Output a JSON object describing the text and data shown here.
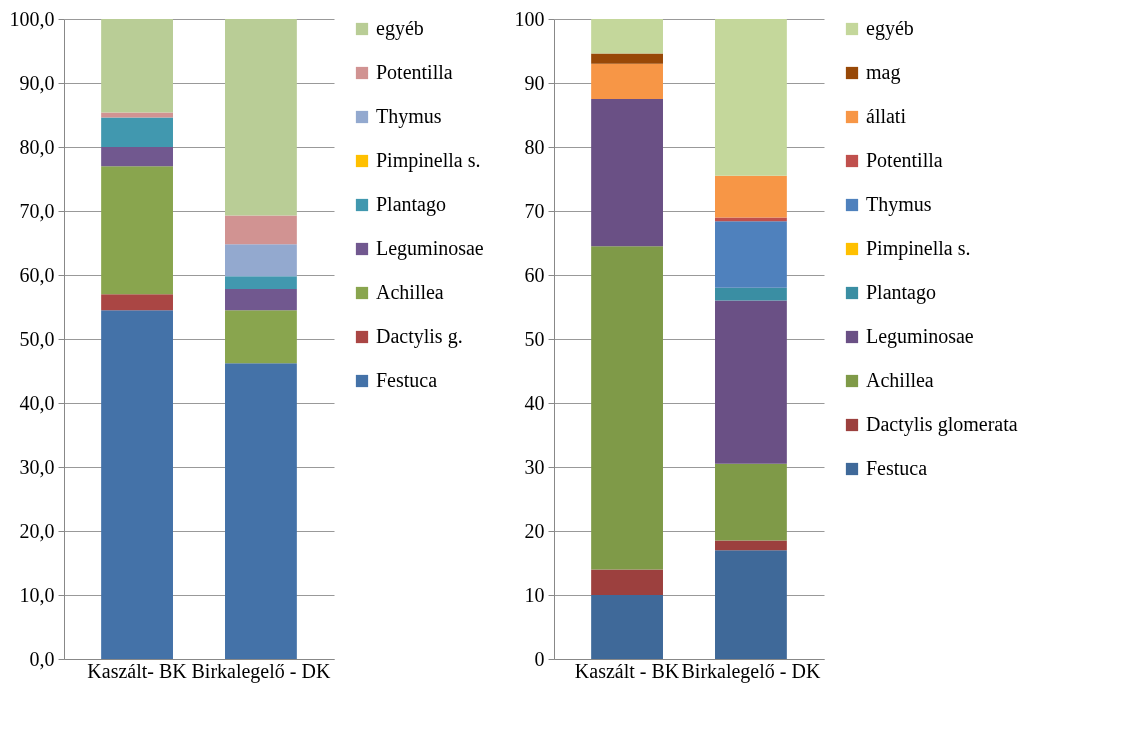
{
  "chart_data": [
    {
      "type": "bar",
      "stacked": true,
      "categories": [
        "Kaszált- BK",
        "Birkalegelő - DK"
      ],
      "ylim": [
        0,
        100
      ],
      "yticks": [
        {
          "value": 0,
          "label": "0,0"
        },
        {
          "value": 10,
          "label": "10,0"
        },
        {
          "value": 20,
          "label": "20,0"
        },
        {
          "value": 30,
          "label": "30,0"
        },
        {
          "value": 40,
          "label": "40,0"
        },
        {
          "value": 50,
          "label": "50,0"
        },
        {
          "value": 60,
          "label": "60,0"
        },
        {
          "value": 70,
          "label": "70,0"
        },
        {
          "value": 80,
          "label": "80,0"
        },
        {
          "value": 90,
          "label": "90,0"
        },
        {
          "value": 100,
          "label": "100,0"
        }
      ],
      "grid": "y",
      "legend": "right",
      "series": [
        {
          "name": "Festuca",
          "color": "#4472a8",
          "values": [
            54.5,
            46.2
          ]
        },
        {
          "name": "Dactylis g.",
          "color": "#aa4644",
          "values": [
            2.5,
            0
          ]
        },
        {
          "name": "Achillea",
          "color": "#89a54e",
          "values": [
            20.0,
            8.3
          ]
        },
        {
          "name": "Leguminosae",
          "color": "#71588f",
          "values": [
            3.0,
            3.3
          ]
        },
        {
          "name": "Plantago",
          "color": "#4198af",
          "values": [
            4.6,
            2.0
          ]
        },
        {
          "name": "Pimpinella s.",
          "color": "#ffc000",
          "values": [
            0,
            0
          ]
        },
        {
          "name": "Thymus",
          "color": "#93a9cf",
          "values": [
            0,
            5.0
          ]
        },
        {
          "name": "Potentilla",
          "color": "#d19392",
          "values": [
            0.8,
            4.5
          ]
        },
        {
          "name": "egyéb",
          "color": "#b9cd96",
          "values": [
            14.6,
            30.7
          ]
        }
      ]
    },
    {
      "type": "bar",
      "stacked": true,
      "categories": [
        "Kaszált - BK",
        "Birkalegelő - DK"
      ],
      "ylim": [
        0,
        100
      ],
      "yticks": [
        0,
        10,
        20,
        30,
        40,
        50,
        60,
        70,
        80,
        90,
        100
      ],
      "grid": "y",
      "legend": "right",
      "series": [
        {
          "name": "Festuca",
          "color": "#3f6999",
          "values": [
            10,
            17
          ]
        },
        {
          "name": "Dactylis glomerata",
          "color": "#9c403e",
          "values": [
            4,
            1.5
          ]
        },
        {
          "name": "Achillea",
          "color": "#7f9a48",
          "values": [
            50.5,
            12
          ]
        },
        {
          "name": "Leguminosae",
          "color": "#6a5085",
          "values": [
            23,
            25.5
          ]
        },
        {
          "name": "Plantago",
          "color": "#3a8ea3",
          "values": [
            0,
            2
          ]
        },
        {
          "name": "Pimpinella s.",
          "color": "#ffc000",
          "values": [
            0,
            0
          ]
        },
        {
          "name": "Thymus",
          "color": "#4f81bd",
          "values": [
            0,
            10.4
          ]
        },
        {
          "name": "Potentilla",
          "color": "#c0504d",
          "values": [
            0,
            0.6
          ]
        },
        {
          "name": "állati",
          "color": "#f79646",
          "values": [
            5.5,
            6.5
          ]
        },
        {
          "name": "mag",
          "color": "#984807",
          "values": [
            1.6,
            0
          ]
        },
        {
          "name": "egyéb",
          "color": "#c4d79b",
          "values": [
            5.4,
            24.5
          ]
        }
      ]
    }
  ]
}
